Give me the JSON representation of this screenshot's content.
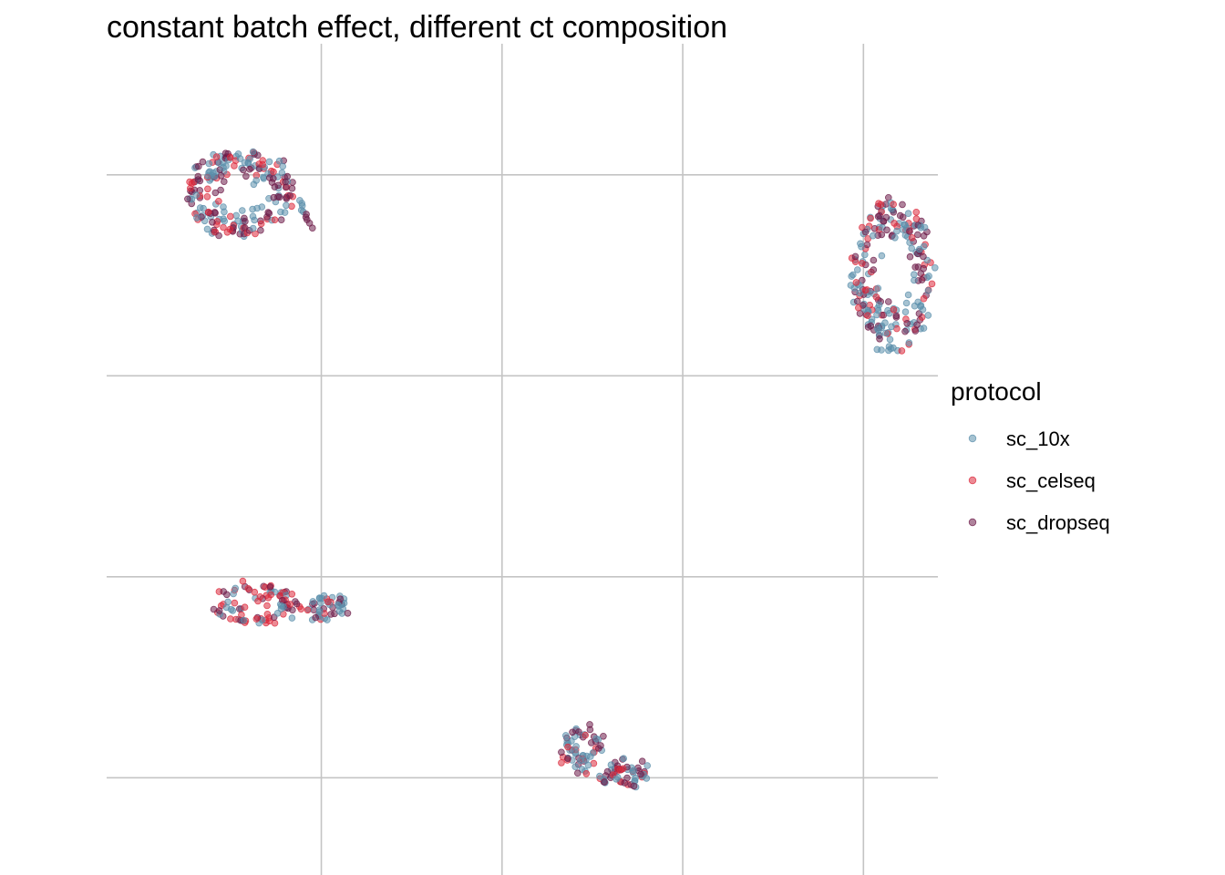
{
  "chart_data": {
    "type": "scatter",
    "title": "constant batch effect, different ct composition",
    "xlabel": "",
    "ylabel": "",
    "xlim": [
      -2.97,
      8.53
    ],
    "ylim": [
      -1.21,
      9.13
    ],
    "x_gridlines": [
      0,
      2.5,
      5,
      7.5
    ],
    "y_gridlines": [
      0,
      2.5,
      5,
      7.5
    ],
    "tick_labels_visible": false,
    "grid": true,
    "point_alpha": 0.55,
    "legend": {
      "title": "protocol",
      "position": "right",
      "entries": [
        "sc_10x",
        "sc_celseq",
        "sc_dropseq"
      ]
    },
    "series": [
      {
        "name": "sc_10x",
        "color": "#5b8fab"
      },
      {
        "name": "sc_celseq",
        "color": "#dc2a3d"
      },
      {
        "name": "sc_dropseq",
        "color": "#6e1d4a"
      }
    ],
    "clusters": [
      {
        "center": [
          -1.1,
          7.25
        ],
        "rx": 0.75,
        "ry": 0.55,
        "n": 210,
        "hole": 0.3,
        "weights": [
          0.4,
          0.25,
          0.35
        ],
        "tail": {
          "from": [
            -0.3,
            7.2
          ],
          "to": [
            -0.15,
            6.85
          ],
          "n": 10
        }
      },
      {
        "center": [
          7.9,
          6.25
        ],
        "rx": 0.55,
        "ry": 0.95,
        "n": 230,
        "hole": 0.35,
        "weights": [
          0.5,
          0.2,
          0.3
        ]
      },
      {
        "center": [
          -0.9,
          2.15
        ],
        "rx": 0.62,
        "ry": 0.26,
        "n": 90,
        "hole": 0.2,
        "weights": [
          0.3,
          0.45,
          0.25
        ]
      },
      {
        "center": [
          0.1,
          2.1
        ],
        "rx": 0.3,
        "ry": 0.15,
        "n": 45,
        "hole": 0.1,
        "weights": [
          0.5,
          0.2,
          0.3
        ]
      },
      {
        "center": [
          3.6,
          0.35
        ],
        "rx": 0.3,
        "ry": 0.3,
        "n": 60,
        "hole": 0.1,
        "weights": [
          0.45,
          0.2,
          0.35
        ]
      },
      {
        "center": [
          4.2,
          0.05
        ],
        "rx": 0.38,
        "ry": 0.14,
        "n": 55,
        "hole": 0.1,
        "weights": [
          0.45,
          0.2,
          0.35
        ]
      }
    ]
  }
}
